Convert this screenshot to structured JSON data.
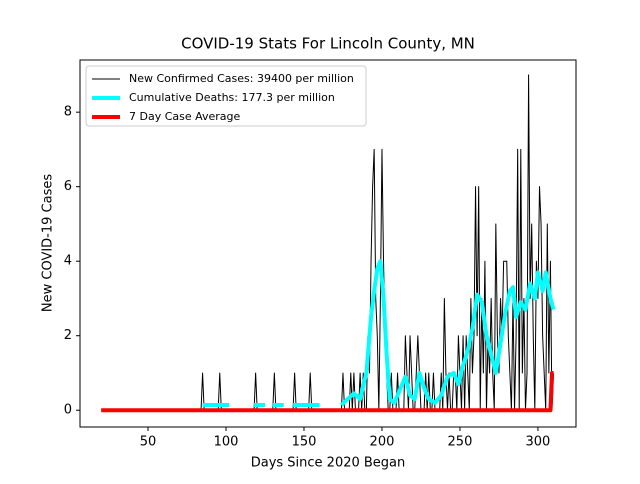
{
  "chart_data": {
    "type": "line",
    "title": "COVID-19 Stats For Lincoln County, MN",
    "xlabel": "Days Since 2020 Began",
    "ylabel": "New COVID-19 Cases",
    "xlim": [
      6.4,
      324.4
    ],
    "ylim": [
      -0.45,
      9.4
    ],
    "xticks": [
      50,
      100,
      150,
      200,
      250,
      300
    ],
    "yticks": [
      0,
      2,
      4,
      6,
      8
    ],
    "legend": "upper left",
    "series": [
      {
        "name": "New Confirmed Cases: 39400 per million",
        "color": "#000000",
        "linewidth": 1,
        "x": [
          20,
          84,
          85,
          86,
          95,
          96,
          97,
          118,
          119,
          120,
          130,
          131,
          132,
          143,
          144,
          145,
          153,
          154,
          155,
          174,
          175,
          176,
          179,
          180,
          181,
          182,
          183,
          184,
          185,
          186,
          187,
          188,
          189,
          190,
          191,
          192,
          193,
          194,
          195,
          196,
          197,
          198,
          199,
          200,
          201,
          202,
          203,
          204,
          205,
          206,
          207,
          208,
          209,
          210,
          211,
          212,
          213,
          214,
          215,
          216,
          217,
          218,
          219,
          220,
          221,
          222,
          223,
          224,
          225,
          226,
          227,
          228,
          229,
          230,
          231,
          232,
          233,
          234,
          235,
          236,
          237,
          238,
          239,
          240,
          241,
          242,
          243,
          244,
          245,
          246,
          247,
          248,
          249,
          250,
          251,
          252,
          253,
          254,
          255,
          256,
          257,
          258,
          259,
          260,
          261,
          262,
          263,
          264,
          265,
          266,
          267,
          268,
          269,
          270,
          271,
          272,
          273,
          274,
          275,
          276,
          277,
          278,
          279,
          280,
          281,
          282,
          283,
          284,
          285,
          286,
          287,
          288,
          289,
          290,
          291,
          292,
          293,
          294,
          295,
          296,
          297,
          298,
          299,
          300,
          301,
          302,
          303,
          304,
          305,
          306,
          307,
          308,
          309,
          310
        ],
        "values": [
          0,
          0,
          1,
          0,
          0,
          1,
          0,
          0,
          1,
          0,
          0,
          1,
          0,
          0,
          1,
          0,
          0,
          1,
          0,
          0,
          1,
          0,
          0,
          1,
          0,
          1,
          0,
          0,
          0,
          1,
          0,
          1,
          0,
          0,
          2,
          1,
          4,
          6,
          7,
          3,
          2,
          0,
          3,
          7,
          4,
          2,
          1,
          0,
          0,
          1,
          0,
          0,
          0,
          1,
          0,
          0,
          0,
          0,
          2,
          1,
          0,
          2,
          1,
          0,
          0,
          1,
          2,
          1,
          0,
          0,
          0,
          1,
          0,
          1,
          0,
          0,
          1,
          0,
          0,
          0,
          0,
          1,
          0,
          3,
          1,
          0,
          1,
          0,
          0,
          1,
          1,
          0,
          2,
          1,
          0,
          2,
          0,
          2,
          1,
          0,
          3,
          1,
          2,
          6,
          2,
          6,
          0,
          3,
          1,
          4,
          0,
          2,
          1,
          3,
          1,
          0,
          5,
          2,
          1,
          3,
          2,
          4,
          4,
          4,
          2,
          1,
          0,
          3,
          0,
          2,
          7,
          0,
          7,
          1,
          3,
          0,
          1,
          9,
          3,
          5,
          2,
          0,
          4,
          3,
          6,
          5,
          2,
          1,
          0,
          5,
          1,
          4,
          0,
          1
        ]
      },
      {
        "name": "Cumulative Deaths: 177.3 per million",
        "color": "#00ffff",
        "linewidth": 4,
        "x": [
          85,
          92,
          102,
          103,
          118,
          125,
          126,
          130,
          137,
          138,
          143,
          160,
          161,
          174,
          178,
          182,
          186,
          190,
          193,
          195,
          197,
          199,
          201,
          203,
          205,
          208,
          212,
          215,
          218,
          221,
          224,
          227,
          230,
          234,
          238,
          242,
          246,
          249,
          252,
          255,
          258,
          261,
          264,
          267,
          270,
          273,
          276,
          279,
          282,
          284,
          286,
          289,
          292,
          295,
          298,
          300,
          303,
          305,
          308,
          310
        ],
        "values": [
          0.14,
          0.14,
          0.14,
          null,
          0.14,
          0.14,
          null,
          0.14,
          0.14,
          null,
          0.14,
          0.14,
          null,
          0.14,
          0.3,
          0.45,
          0.3,
          1,
          2.5,
          3.2,
          3.8,
          4,
          3,
          1.5,
          0.3,
          0.2,
          0.6,
          0.9,
          0.4,
          0.3,
          1,
          0.6,
          0.3,
          0.2,
          0.4,
          0.9,
          1,
          0.7,
          1.2,
          1.6,
          2.2,
          3.1,
          2.9,
          2,
          1.5,
          1,
          1.8,
          2.6,
          3.2,
          3.3,
          2.5,
          2.9,
          2.7,
          3.4,
          3,
          3.7,
          3.2,
          3.7,
          3,
          2.7
        ]
      },
      {
        "name": "7 Day Case Average",
        "color": "#ff0000",
        "linewidth": 4,
        "x": [
          20,
          308,
          309,
          310
        ],
        "values": [
          0,
          0,
          1,
          1
        ]
      }
    ]
  }
}
